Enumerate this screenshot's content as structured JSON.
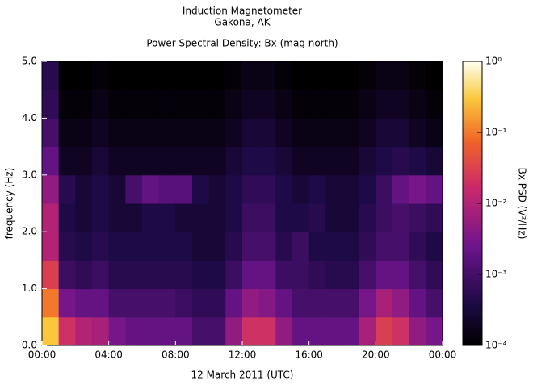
{
  "chart_data": {
    "type": "heatmap",
    "title": "Induction Magnetometer",
    "subtitle": "Gakona, AK",
    "plot_title": "Power Spectral Density: Bx (mag north)",
    "xlabel": "12 March 2011 (UTC)",
    "ylabel": "frequency (Hz)",
    "colorbar_label": "Bx PSD (V²/Hz)",
    "xlim": [
      0,
      24
    ],
    "xticks": [
      {
        "value": 0,
        "label": "00:00"
      },
      {
        "value": 4,
        "label": "04:00"
      },
      {
        "value": 8,
        "label": "08:00"
      },
      {
        "value": 12,
        "label": "12:00"
      },
      {
        "value": 16,
        "label": "16:00"
      },
      {
        "value": 20,
        "label": "20:00"
      },
      {
        "value": 24,
        "label": "00:00"
      }
    ],
    "ylim": [
      0,
      5
    ],
    "yticks": [
      {
        "value": 0,
        "label": "0.0"
      },
      {
        "value": 1,
        "label": "1.0"
      },
      {
        "value": 2,
        "label": "2.0"
      },
      {
        "value": 3,
        "label": "3.0"
      },
      {
        "value": 4,
        "label": "4.0"
      },
      {
        "value": 5,
        "label": "5.0"
      }
    ],
    "clim": [
      0.0001,
      1
    ],
    "color_log": true,
    "cticks": [
      {
        "value": 0.0001,
        "label": "10⁻⁴"
      },
      {
        "value": 0.001,
        "label": "10⁻³"
      },
      {
        "value": 0.01,
        "label": "10⁻²"
      },
      {
        "value": 0.1,
        "label": "10⁻¹"
      },
      {
        "value": 1,
        "label": "10⁰"
      }
    ],
    "bins_x": [
      0,
      1,
      2,
      3,
      4,
      5,
      6,
      7,
      8,
      9,
      10,
      11,
      12,
      13,
      14,
      15,
      16,
      17,
      18,
      19,
      20,
      21,
      22,
      23,
      24
    ],
    "bins_y": [
      0,
      0.5,
      1,
      1.5,
      2,
      2.5,
      3,
      3.5,
      4,
      4.5,
      5
    ],
    "values": [
      [
        0.3,
        0.02,
        0.01,
        0.008,
        0.003,
        0.002,
        0.002,
        0.002,
        0.002,
        0.001,
        0.001,
        0.005,
        0.02,
        0.02,
        0.005,
        0.002,
        0.002,
        0.002,
        0.002,
        0.008,
        0.03,
        0.02,
        0.005,
        0.003
      ],
      [
        0.1,
        0.003,
        0.002,
        0.002,
        0.001,
        0.001,
        0.001,
        0.001,
        0.0008,
        0.0006,
        0.0006,
        0.002,
        0.005,
        0.004,
        0.002,
        0.001,
        0.001,
        0.001,
        0.001,
        0.003,
        0.008,
        0.005,
        0.002,
        0.001
      ],
      [
        0.03,
        0.0008,
        0.0006,
        0.0008,
        0.0005,
        0.0005,
        0.0005,
        0.0005,
        0.0005,
        0.0004,
        0.0004,
        0.0008,
        0.002,
        0.002,
        0.0008,
        0.0008,
        0.0006,
        0.0005,
        0.0005,
        0.001,
        0.002,
        0.002,
        0.001,
        0.0006
      ],
      [
        0.01,
        0.0005,
        0.0004,
        0.0005,
        0.0004,
        0.0004,
        0.0004,
        0.0004,
        0.0004,
        0.0003,
        0.0003,
        0.0005,
        0.001,
        0.001,
        0.0005,
        0.0008,
        0.0004,
        0.0004,
        0.0004,
        0.0006,
        0.001,
        0.001,
        0.0006,
        0.0004
      ],
      [
        0.01,
        0.0004,
        0.0003,
        0.0004,
        0.0003,
        0.0003,
        0.0004,
        0.0004,
        0.0003,
        0.0003,
        0.0003,
        0.0004,
        0.0008,
        0.0008,
        0.0004,
        0.0004,
        0.0005,
        0.0003,
        0.0003,
        0.0005,
        0.0008,
        0.001,
        0.0008,
        0.0006
      ],
      [
        0.005,
        0.0005,
        0.0003,
        0.0004,
        0.0003,
        0.001,
        0.002,
        0.0015,
        0.0015,
        0.0004,
        0.0003,
        0.0004,
        0.0006,
        0.0006,
        0.0004,
        0.0003,
        0.0004,
        0.0003,
        0.0003,
        0.0004,
        0.0008,
        0.002,
        0.003,
        0.002
      ],
      [
        0.002,
        0.0002,
        0.0002,
        0.0003,
        0.0002,
        0.0002,
        0.0002,
        0.0002,
        0.0002,
        0.0002,
        0.0002,
        0.0003,
        0.0004,
        0.0004,
        0.0003,
        0.0002,
        0.0002,
        0.0002,
        0.0002,
        0.0003,
        0.0004,
        0.0005,
        0.0004,
        0.0003
      ],
      [
        0.001,
        0.00015,
        0.00015,
        0.0002,
        0.00015,
        0.00015,
        0.00015,
        0.00015,
        0.00015,
        0.00015,
        0.00015,
        0.0002,
        0.0003,
        0.0003,
        0.0002,
        0.00015,
        0.00015,
        0.00015,
        0.00015,
        0.0002,
        0.0003,
        0.0003,
        0.0002,
        0.00015
      ],
      [
        0.0006,
        0.00012,
        0.00012,
        0.00015,
        0.00012,
        0.00012,
        0.00012,
        0.00012,
        0.00012,
        0.00012,
        0.00012,
        0.00015,
        0.0002,
        0.0002,
        0.00015,
        0.00012,
        0.00012,
        0.00012,
        0.00012,
        0.00015,
        0.0002,
        0.0002,
        0.00015,
        0.00012
      ],
      [
        0.0005,
        0.0001,
        0.0001,
        0.00012,
        0.0001,
        0.0001,
        0.0001,
        0.0001,
        0.0001,
        0.0001,
        0.0001,
        0.00012,
        0.00015,
        0.00015,
        0.00012,
        0.0001,
        0.0001,
        0.0001,
        0.0001,
        0.00012,
        0.00015,
        0.00015,
        0.00012,
        0.0001
      ]
    ]
  }
}
